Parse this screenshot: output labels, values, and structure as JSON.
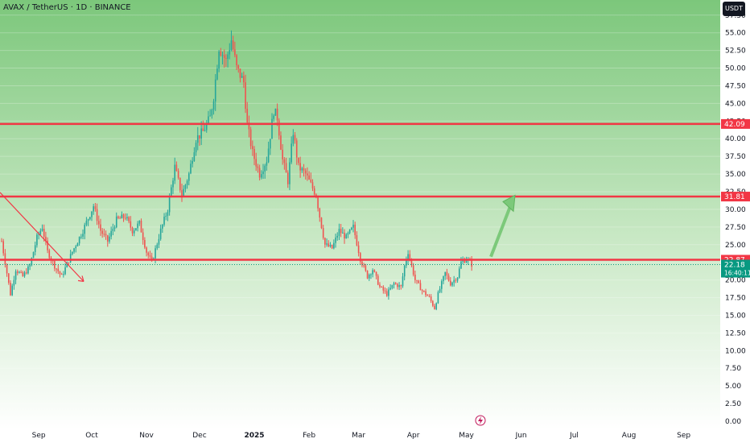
{
  "header": {
    "symbol": "AVAX / TetherUS · 1D · BINANCE",
    "currency": "USDT"
  },
  "colors": {
    "up": "#26a69a",
    "down": "#ef5350",
    "level_line": "#f23645",
    "arrow_down": "#f23645",
    "arrow_up": "#7cc97a",
    "current_price_badge": "#089981",
    "bg_top": "#7cc77b",
    "bg_bottom": "#ffffff"
  },
  "chart_data": {
    "type": "candlestick",
    "ylim": [
      0,
      58.5
    ],
    "y_ticks": [
      "57.50",
      "55.00",
      "52.50",
      "50.00",
      "47.50",
      "45.00",
      "42.50",
      "40.00",
      "37.50",
      "35.00",
      "32.50",
      "30.00",
      "27.50",
      "25.00",
      "22.50",
      "20.00",
      "17.50",
      "15.00",
      "12.50",
      "10.00",
      "7.50",
      "5.00",
      "2.50",
      "0.00"
    ],
    "y_tick_values": [
      57.5,
      55,
      52.5,
      50,
      47.5,
      45,
      42.5,
      40,
      37.5,
      35,
      32.5,
      30,
      27.5,
      25,
      22.5,
      20,
      17.5,
      15,
      12.5,
      10,
      7.5,
      5,
      2.5,
      0
    ],
    "x_ticks": [
      "Aug",
      "Sep",
      "Oct",
      "Nov",
      "Dec",
      "2025",
      "Feb",
      "Mar",
      "Apr",
      "May",
      "Jun",
      "Jul",
      "Aug",
      "Sep"
    ],
    "x_tick_days": [
      -10,
      21,
      51,
      82,
      112,
      143,
      174,
      202,
      233,
      263,
      294,
      324,
      355,
      386
    ],
    "horizontal_levels": [
      {
        "value": 42.09,
        "label": "42.09"
      },
      {
        "value": 31.81,
        "label": "31.81"
      },
      {
        "value": 22.87,
        "label": "22.87"
      }
    ],
    "current_price": {
      "value": 22.18,
      "label": "22.18",
      "countdown": "16:40:11"
    },
    "anchors": [
      [
        0,
        25.5
      ],
      [
        3,
        21
      ],
      [
        5,
        18
      ],
      [
        8,
        21.5
      ],
      [
        12,
        20.5
      ],
      [
        16,
        22
      ],
      [
        20,
        26
      ],
      [
        23,
        27.5
      ],
      [
        26,
        24
      ],
      [
        30,
        22
      ],
      [
        34,
        20.5
      ],
      [
        40,
        24
      ],
      [
        46,
        27
      ],
      [
        52,
        30.5
      ],
      [
        56,
        27
      ],
      [
        60,
        25.5
      ],
      [
        65,
        28.5
      ],
      [
        70,
        29
      ],
      [
        74,
        27
      ],
      [
        78,
        28
      ],
      [
        82,
        24
      ],
      [
        85,
        22.5
      ],
      [
        90,
        27
      ],
      [
        94,
        30
      ],
      [
        98,
        36
      ],
      [
        102,
        32
      ],
      [
        106,
        35
      ],
      [
        110,
        40
      ],
      [
        114,
        41
      ],
      [
        118,
        43
      ],
      [
        120,
        46
      ],
      [
        123,
        53
      ],
      [
        127,
        51
      ],
      [
        130,
        54
      ],
      [
        133,
        50
      ],
      [
        137,
        48
      ],
      [
        139,
        42
      ],
      [
        142,
        38
      ],
      [
        146,
        35
      ],
      [
        150,
        37
      ],
      [
        154,
        44
      ],
      [
        156,
        43
      ],
      [
        159,
        37
      ],
      [
        162,
        34
      ],
      [
        165,
        41
      ],
      [
        168,
        36
      ],
      [
        172,
        35
      ],
      [
        176,
        33
      ],
      [
        178,
        32
      ],
      [
        180,
        29
      ],
      [
        183,
        25
      ],
      [
        187,
        24.5
      ],
      [
        191,
        27
      ],
      [
        195,
        26
      ],
      [
        199,
        27.5
      ],
      [
        203,
        23
      ],
      [
        207,
        20.5
      ],
      [
        210,
        21.5
      ],
      [
        214,
        19
      ],
      [
        218,
        18
      ],
      [
        222,
        19.5
      ],
      [
        226,
        19
      ],
      [
        228,
        22
      ],
      [
        230,
        24
      ],
      [
        234,
        20
      ],
      [
        238,
        18.5
      ],
      [
        242,
        17.5
      ],
      [
        245,
        16
      ],
      [
        247,
        18
      ],
      [
        251,
        21
      ],
      [
        254,
        19.5
      ],
      [
        258,
        20.5
      ],
      [
        260,
        22.5
      ],
      [
        263,
        23
      ],
      [
        266,
        22.2
      ]
    ]
  }
}
